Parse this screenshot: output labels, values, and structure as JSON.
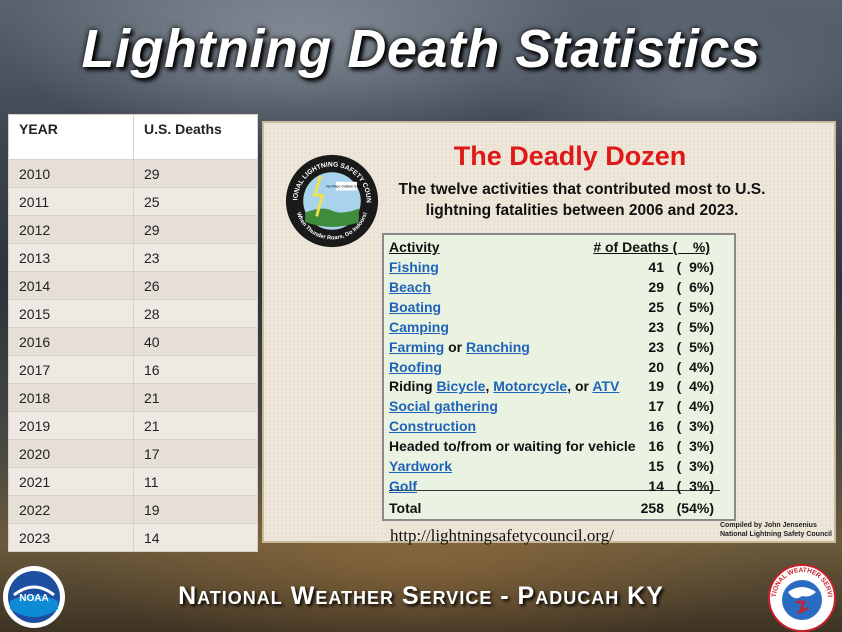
{
  "title": "Lightning Death Statistics",
  "year_table": {
    "headers": [
      "YEAR",
      "U.S. Deaths"
    ],
    "rows": [
      [
        "2010",
        "29"
      ],
      [
        "2011",
        "25"
      ],
      [
        "2012",
        "29"
      ],
      [
        "2013",
        "23"
      ],
      [
        "2014",
        "26"
      ],
      [
        "2015",
        "28"
      ],
      [
        "2016",
        "40"
      ],
      [
        "2017",
        "16"
      ],
      [
        "2018",
        "21"
      ],
      [
        "2019",
        "21"
      ],
      [
        "2020",
        "17"
      ],
      [
        "2021",
        "11"
      ],
      [
        "2022",
        "19"
      ],
      [
        "2023",
        "14"
      ]
    ]
  },
  "panel": {
    "title": "The Deadly Dozen",
    "subtitle_line1": "The twelve activities that contributed most to U.S.",
    "subtitle_line2": "lightning fatalities between 2006 and 2023.",
    "header_activity": "Activity",
    "header_deaths": "# of Deaths (    %)",
    "logo_top_text": "NATIONAL LIGHTNING SAFETY COUNCIL",
    "logo_bottom_text": "When Thunder Roars, Go Indoors!",
    "logo_inner_text": "No Place Outside Is Safe !",
    "activities": [
      {
        "parts": [
          {
            "t": "Fishing",
            "link": true
          }
        ],
        "deaths": "41",
        "pct": "(  9%)"
      },
      {
        "parts": [
          {
            "t": "Beach",
            "link": true
          }
        ],
        "deaths": "29",
        "pct": "(  6%)"
      },
      {
        "parts": [
          {
            "t": "Boating",
            "link": true
          }
        ],
        "deaths": "25",
        "pct": "(  5%)"
      },
      {
        "parts": [
          {
            "t": "Camping",
            "link": true
          }
        ],
        "deaths": "23",
        "pct": "(  5%)"
      },
      {
        "parts": [
          {
            "t": "Farming",
            "link": true
          },
          {
            "t": " or ",
            "link": false
          },
          {
            "t": "Ranching",
            "link": true
          }
        ],
        "deaths": "23",
        "pct": "(  5%)"
      },
      {
        "parts": [
          {
            "t": "Roofing",
            "link": true
          }
        ],
        "deaths": "20",
        "pct": "(  4%)"
      },
      {
        "parts": [
          {
            "t": "Riding ",
            "link": false
          },
          {
            "t": "Bicycle",
            "link": true
          },
          {
            "t": ", ",
            "link": false
          },
          {
            "t": "Motorcycle",
            "link": true
          },
          {
            "t": ", or ",
            "link": false
          },
          {
            "t": "ATV",
            "link": true
          }
        ],
        "deaths": "19",
        "pct": "(  4%)"
      },
      {
        "parts": [
          {
            "t": "Social gathering",
            "link": true
          }
        ],
        "deaths": "17",
        "pct": "(  4%)"
      },
      {
        "parts": [
          {
            "t": "Construction",
            "link": true
          }
        ],
        "deaths": "16",
        "pct": "(  3%)"
      },
      {
        "parts": [
          {
            "t": "Headed to/from or waiting for vehicle",
            "link": false
          }
        ],
        "deaths": "16",
        "pct": "(  3%)"
      },
      {
        "parts": [
          {
            "t": "Yardwork",
            "link": true
          }
        ],
        "deaths": "15",
        "pct": "(  3%)"
      },
      {
        "parts": [
          {
            "t": "Golf",
            "link": true
          }
        ],
        "deaths": "14",
        "pct": "(  3%)"
      }
    ],
    "total": {
      "label": "Total",
      "deaths": "258",
      "pct": "(54%)"
    },
    "credit_line1": "Compiled by John Jensenius",
    "credit_line2": "National Lightning Safety Council"
  },
  "url": "http://lightningsafetycouncil.org/",
  "footer": "National Weather Service - Paducah KY",
  "logos": {
    "noaa": "NOAA",
    "nws": "NATIONAL WEATHER SERVICE"
  },
  "colors": {
    "panel_title": "#e01818",
    "link": "#1f63b8",
    "activity_bg": "#eaf3e1"
  }
}
